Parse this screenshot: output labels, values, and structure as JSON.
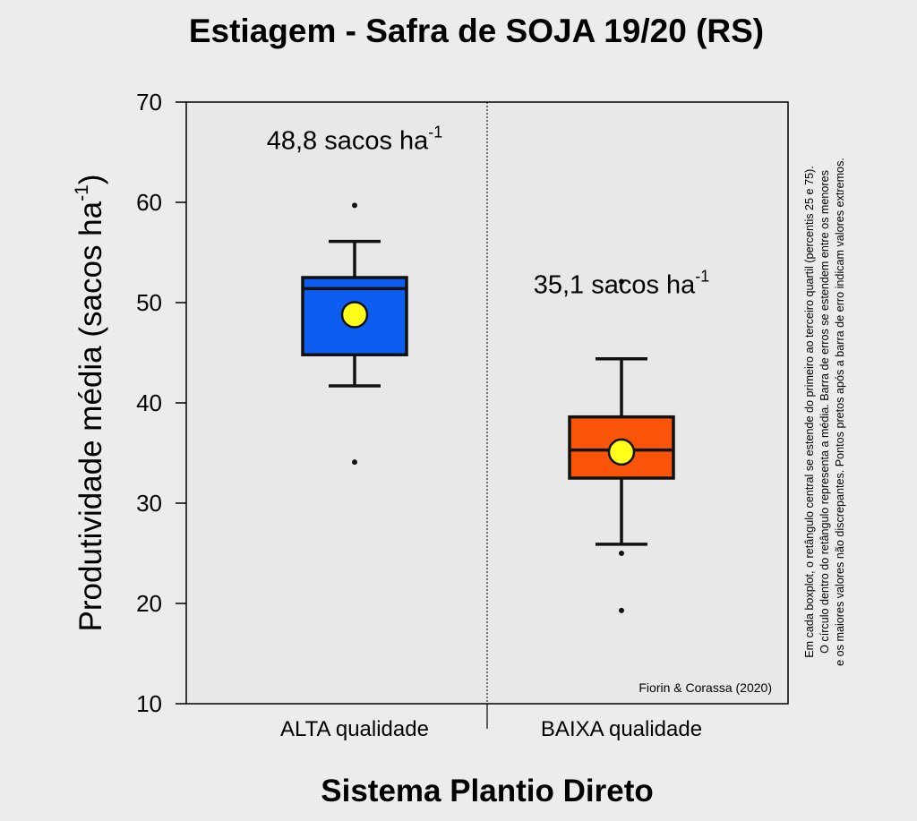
{
  "chart_data": {
    "type": "box",
    "title": "Estiagem - Safra de SOJA 19/20 (RS)",
    "xlabel": "Sistema Plantio Direto",
    "ylabel_main": "Produtividade média (sacos ha",
    "ylabel_sup": "-1",
    "ylabel_close": ")",
    "ylim": [
      10,
      70
    ],
    "yticks": [
      10,
      20,
      30,
      40,
      50,
      60,
      70
    ],
    "grid": false,
    "categories": [
      "ALTA qualidade",
      "BAIXA qualidade"
    ],
    "boxes": [
      {
        "category": "ALTA qualidade",
        "whisker_low": 41.7,
        "q1": 44.8,
        "median": 51.4,
        "q3": 52.5,
        "whisker_high": 56.1,
        "mean": 48.8,
        "outliers": [
          59.7,
          34.1
        ],
        "color": "#0d5df0",
        "mean_label": "48,8 sacos ha",
        "mean_label_sup": "-1"
      },
      {
        "category": "BAIXA qualidade",
        "whisker_low": 25.9,
        "q1": 32.5,
        "median": 35.3,
        "q3": 38.6,
        "whisker_high": 44.4,
        "mean": 35.1,
        "outliers": [
          52.1,
          25.0,
          19.3
        ],
        "color": "#fa5408",
        "mean_label": "35,1 sacos ha",
        "mean_label_sup": "-1"
      }
    ],
    "mean_marker_color": "#ffff1a",
    "credit": "Fiorin & Corassa (2020)",
    "note_lines": [
      "Em cada boxplot, o retângulo central se estende do primeiro ao terceiro quartil (percentis 25 e 75).",
      "O círculo dentro do retângulo representa a média. Barra de erros se estendem entre os menores",
      "e os maiores valores não discrepantes. Pontos pretos após a barra de erro indicam valores extremos."
    ]
  }
}
